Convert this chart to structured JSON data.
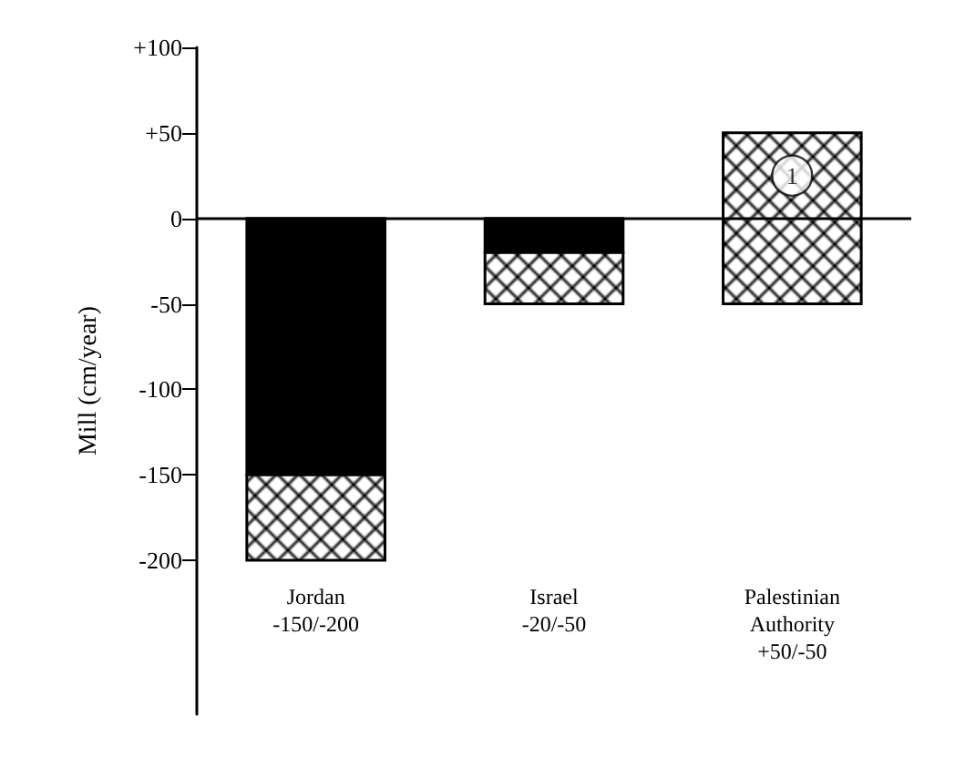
{
  "chart_data": {
    "type": "bar",
    "ylabel": "Mill (cm/year)",
    "categories": [
      "Jordan\n-150/-200",
      "Israel\n-20/-50",
      "Palestinian\nAuthority\n+50/-50"
    ],
    "series": [
      {
        "color": "#000000",
        "base": [
          0,
          0,
          null
        ],
        "values": [
          -150,
          -20,
          null
        ]
      },
      {
        "color": "#000000",
        "base": [
          -150,
          -20,
          -50
        ],
        "values": [
          -50,
          -30,
          100
        ]
      }
    ],
    "ylim": [
      -290,
      100
    ],
    "yticks": [
      {
        "value": 100,
        "label": "+100"
      },
      {
        "value": 50,
        "label": "+50"
      },
      0,
      -50,
      -100,
      -150,
      -200
    ],
    "ref_lines": [
      {
        "axis": "y",
        "value": 0,
        "label": null
      }
    ],
    "annotations": [
      {
        "text": "1",
        "x": "Palestinian\nAuthority\n+50/-50",
        "y": 25
      }
    ],
    "grid": false
  }
}
